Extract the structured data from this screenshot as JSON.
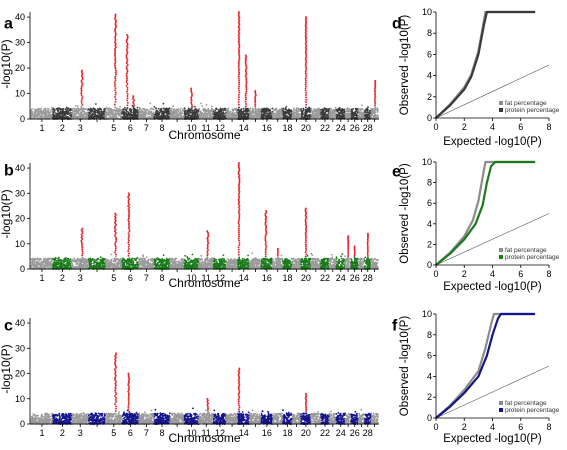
{
  "colors": {
    "red": "#e8242a",
    "light_grey": "#9a9a9a",
    "dark_grey": "#3a3a3a",
    "green": "#1b7a1b",
    "blue": "#14148c",
    "fat_line": "#8c8c8c"
  },
  "chart_data": [
    {
      "panel": "a",
      "type": "scatter",
      "subtype": "manhattan",
      "xlabel": "Chromosome",
      "ylabel": "-log10(P)",
      "ylim": [
        0,
        42
      ],
      "yticks": [
        0,
        10,
        20,
        30,
        40
      ],
      "x_tick_labels": [
        "1",
        "2",
        "3",
        "5",
        "6",
        "7",
        "8",
        "10",
        "11",
        "12",
        "14",
        "16",
        "18",
        "20",
        "22",
        "24",
        "26",
        "28"
      ],
      "chromosomes": 29,
      "alt_colors": [
        "light_grey",
        "dark_grey"
      ],
      "significant_color": "red",
      "threshold": 5,
      "peaks": [
        {
          "chr": 3,
          "pos": 0.6,
          "y": 19
        },
        {
          "chr": 5,
          "pos": 0.6,
          "y": 41
        },
        {
          "chr": 6,
          "pos": 0.3,
          "y": 33
        },
        {
          "chr": 6,
          "pos": 0.7,
          "y": 9
        },
        {
          "chr": 10,
          "pos": 0.5,
          "y": 12
        },
        {
          "chr": 14,
          "pos": 0.1,
          "y": 42
        },
        {
          "chr": 14,
          "pos": 0.7,
          "y": 25
        },
        {
          "chr": 15,
          "pos": 0.5,
          "y": 11
        },
        {
          "chr": 20,
          "pos": 0.5,
          "y": 40
        },
        {
          "chr": 29,
          "pos": 0.6,
          "y": 15
        }
      ]
    },
    {
      "panel": "b",
      "type": "scatter",
      "subtype": "manhattan",
      "xlabel": "Chromosome",
      "ylabel": "-log10(P)",
      "ylim": [
        0,
        42
      ],
      "yticks": [
        0,
        10,
        20,
        30,
        40
      ],
      "x_tick_labels": [
        "1",
        "2",
        "3",
        "5",
        "6",
        "7",
        "8",
        "10",
        "11",
        "12",
        "14",
        "16",
        "18",
        "20",
        "22",
        "24",
        "26",
        "28"
      ],
      "chromosomes": 29,
      "alt_colors": [
        "light_grey",
        "green"
      ],
      "significant_color": "red",
      "threshold": 5,
      "peaks": [
        {
          "chr": 3,
          "pos": 0.6,
          "y": 16
        },
        {
          "chr": 5,
          "pos": 0.6,
          "y": 22
        },
        {
          "chr": 6,
          "pos": 0.4,
          "y": 30
        },
        {
          "chr": 11,
          "pos": 0.6,
          "y": 15
        },
        {
          "chr": 14,
          "pos": 0.1,
          "y": 42
        },
        {
          "chr": 16,
          "pos": 0.4,
          "y": 23
        },
        {
          "chr": 17,
          "pos": 0.5,
          "y": 8
        },
        {
          "chr": 20,
          "pos": 0.5,
          "y": 24
        },
        {
          "chr": 25,
          "pos": 0.5,
          "y": 13
        },
        {
          "chr": 26,
          "pos": 0.5,
          "y": 9
        },
        {
          "chr": 28,
          "pos": 0.5,
          "y": 14
        }
      ]
    },
    {
      "panel": "c",
      "type": "scatter",
      "subtype": "manhattan",
      "xlabel": "Chromosome",
      "ylabel": "-log10(P)",
      "ylim": [
        0,
        42
      ],
      "yticks": [
        0,
        10,
        20,
        30,
        40
      ],
      "x_tick_labels": [
        "1",
        "2",
        "3",
        "5",
        "6",
        "7",
        "8",
        "10",
        "11",
        "12",
        "14",
        "16",
        "18",
        "20",
        "22",
        "24",
        "26",
        "28"
      ],
      "chromosomes": 29,
      "alt_colors": [
        "light_grey",
        "blue"
      ],
      "significant_color": "red",
      "threshold": 5,
      "peaks": [
        {
          "chr": 5,
          "pos": 0.6,
          "y": 28
        },
        {
          "chr": 6,
          "pos": 0.4,
          "y": 20
        },
        {
          "chr": 11,
          "pos": 0.6,
          "y": 10
        },
        {
          "chr": 14,
          "pos": 0.1,
          "y": 22
        },
        {
          "chr": 20,
          "pos": 0.5,
          "y": 12
        }
      ]
    },
    {
      "panel": "d",
      "type": "line",
      "subtype": "qq",
      "xlabel": "Expected -log10(P)",
      "ylabel": "Observed -log10(P)",
      "xlim": [
        0,
        8
      ],
      "ylim": [
        0,
        10
      ],
      "xticks": [
        0,
        2,
        4,
        6,
        8
      ],
      "yticks": [
        0,
        2,
        4,
        6,
        8,
        10
      ],
      "legend": [
        {
          "label": "fat percentage",
          "color": "fat_line"
        },
        {
          "label": "protein percentage",
          "color": "dark_grey"
        }
      ],
      "series": [
        {
          "color": "fat_line",
          "points": [
            [
              0,
              0
            ],
            [
              1,
              1.3
            ],
            [
              2,
              2.9
            ],
            [
              2.5,
              4.1
            ],
            [
              3,
              6.3
            ],
            [
              3.3,
              8.5
            ],
            [
              3.5,
              10
            ],
            [
              7,
              10
            ]
          ]
        },
        {
          "color": "dark_grey",
          "points": [
            [
              0,
              0
            ],
            [
              1,
              1.2
            ],
            [
              2,
              2.7
            ],
            [
              2.5,
              3.9
            ],
            [
              3,
              6.0
            ],
            [
              3.4,
              8.8
            ],
            [
              3.6,
              10
            ],
            [
              7,
              10
            ]
          ]
        }
      ]
    },
    {
      "panel": "e",
      "type": "line",
      "subtype": "qq",
      "xlabel": "Expected -log10(P)",
      "ylabel": "Observed -log10(P)",
      "xlim": [
        0,
        8
      ],
      "ylim": [
        0,
        10
      ],
      "xticks": [
        0,
        2,
        4,
        6,
        8
      ],
      "yticks": [
        0,
        2,
        4,
        6,
        8,
        10
      ],
      "legend": [
        {
          "label": "fat percentage",
          "color": "fat_line"
        },
        {
          "label": "protein percentage",
          "color": "green"
        }
      ],
      "series": [
        {
          "color": "fat_line",
          "points": [
            [
              0,
              0
            ],
            [
              1,
              1.2
            ],
            [
              2,
              2.8
            ],
            [
              2.6,
              4.3
            ],
            [
              3,
              6.2
            ],
            [
              3.3,
              8.5
            ],
            [
              3.5,
              10
            ],
            [
              7,
              10
            ]
          ]
        },
        {
          "color": "green",
          "points": [
            [
              0,
              0
            ],
            [
              1,
              1.1
            ],
            [
              2,
              2.5
            ],
            [
              2.8,
              4.0
            ],
            [
              3.3,
              5.8
            ],
            [
              3.6,
              8.0
            ],
            [
              3.9,
              9.6
            ],
            [
              4.2,
              10
            ],
            [
              7,
              10
            ]
          ]
        }
      ]
    },
    {
      "panel": "f",
      "type": "line",
      "subtype": "qq",
      "xlabel": "Expected -log10(P)",
      "ylabel": "Observed -log10(P)",
      "xlim": [
        0,
        8
      ],
      "ylim": [
        0,
        10
      ],
      "xticks": [
        0,
        2,
        4,
        6,
        8
      ],
      "yticks": [
        0,
        2,
        4,
        6,
        8,
        10
      ],
      "legend": [
        {
          "label": "fat percentage",
          "color": "fat_line"
        },
        {
          "label": "protein percentage",
          "color": "blue"
        }
      ],
      "series": [
        {
          "color": "fat_line",
          "points": [
            [
              0,
              0
            ],
            [
              1,
              1.2
            ],
            [
              2,
              2.7
            ],
            [
              3,
              4.5
            ],
            [
              3.5,
              6.7
            ],
            [
              3.9,
              9.0
            ],
            [
              4.1,
              10
            ],
            [
              7,
              10
            ]
          ]
        },
        {
          "color": "blue",
          "points": [
            [
              0,
              0
            ],
            [
              1,
              1.1
            ],
            [
              2,
              2.4
            ],
            [
              3,
              4.0
            ],
            [
              3.6,
              6.0
            ],
            [
              4.0,
              8.0
            ],
            [
              4.4,
              9.6
            ],
            [
              4.6,
              10
            ],
            [
              7,
              10
            ]
          ]
        }
      ]
    }
  ]
}
